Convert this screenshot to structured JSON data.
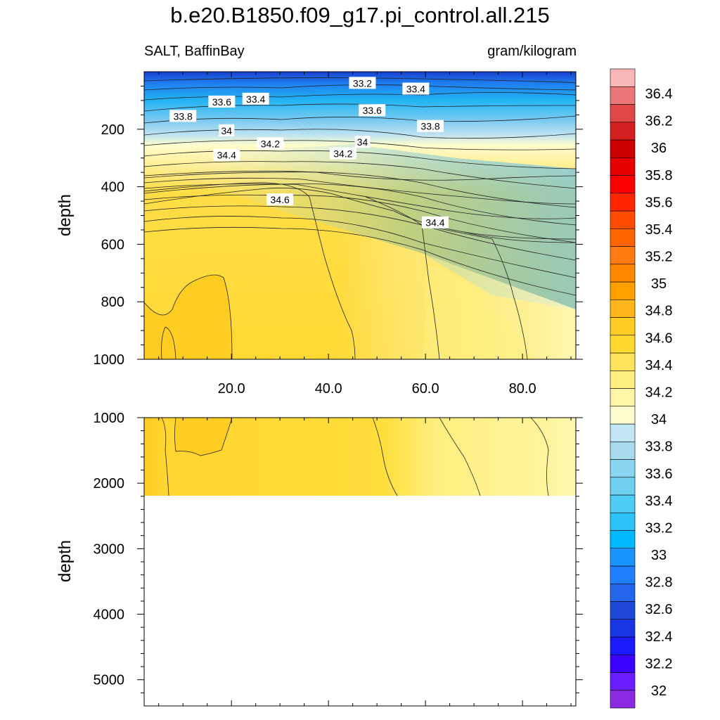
{
  "header": {
    "title": "b.e20.B1850.f09_g17.pi_control.all.215",
    "variable_region": "SALT, BaffinBay",
    "units": "gram/kilogram"
  },
  "chart_data": [
    {
      "type": "contour",
      "panel": "upper",
      "xlabel": "",
      "ylabel": "depth",
      "xlim": [
        2,
        91
      ],
      "ylim": [
        1000,
        0
      ],
      "xticks": [
        "20.0",
        "40.0",
        "60.0",
        "80.0"
      ],
      "yticks": [
        "200",
        "400",
        "600",
        "800",
        "1000"
      ],
      "contour_labels": [
        {
          "text": "33.2",
          "x": 47,
          "y": 40
        },
        {
          "text": "33.4",
          "x": 25,
          "y": 95
        },
        {
          "text": "33.4",
          "x": 58,
          "y": 60
        },
        {
          "text": "33.6",
          "x": 18,
          "y": 105
        },
        {
          "text": "33.6",
          "x": 49,
          "y": 135
        },
        {
          "text": "33.8",
          "x": 10,
          "y": 155
        },
        {
          "text": "33.8",
          "x": 61,
          "y": 190
        },
        {
          "text": "34",
          "x": 19,
          "y": 205
        },
        {
          "text": "34",
          "x": 47,
          "y": 245
        },
        {
          "text": "34.2",
          "x": 28,
          "y": 250
        },
        {
          "text": "34.2",
          "x": 43,
          "y": 285
        },
        {
          "text": "34.4",
          "x": 19,
          "y": 290
        },
        {
          "text": "34.4",
          "x": 62,
          "y": 525
        },
        {
          "text": "34.6",
          "x": 30,
          "y": 445
        }
      ]
    },
    {
      "type": "contour",
      "panel": "lower",
      "xlabel": "",
      "ylabel": "depth",
      "xlim": [
        2,
        91
      ],
      "ylim": [
        5400,
        1000
      ],
      "yticks": [
        "1000",
        "2000",
        "3000",
        "4000",
        "5000"
      ],
      "data_bottom_depth": 2200
    }
  ],
  "colorbar": {
    "labels": [
      "32",
      "32.2",
      "32.4",
      "32.6",
      "32.8",
      "33",
      "33.2",
      "33.4",
      "33.6",
      "33.8",
      "34",
      "34.2",
      "34.4",
      "34.6",
      "34.8",
      "35",
      "35.2",
      "35.4",
      "35.6",
      "35.8",
      "36",
      "36.2",
      "36.4"
    ],
    "colors": [
      "#8a2be2",
      "#6a1eff",
      "#3c00ff",
      "#1a1aff",
      "#1836e6",
      "#2048d8",
      "#2565ec",
      "#1e80ff",
      "#1a95ff",
      "#00b8ff",
      "#2cc4f8",
      "#4ecdf4",
      "#70d0f0",
      "#8ad6f2",
      "#a8dbee",
      "#c2e6f4",
      "#fffdd0",
      "#fff6a8",
      "#ffee80",
      "#ffe35a",
      "#ffd830",
      "#ffcc22",
      "#ffb61a",
      "#ffa000",
      "#ff8800",
      "#ff7a10",
      "#ff6400",
      "#ff4c00",
      "#ff2600",
      "#ff0000",
      "#e60000",
      "#cc0000",
      "#d42020",
      "#e04848",
      "#ea7878",
      "#f8b8b8"
    ]
  }
}
